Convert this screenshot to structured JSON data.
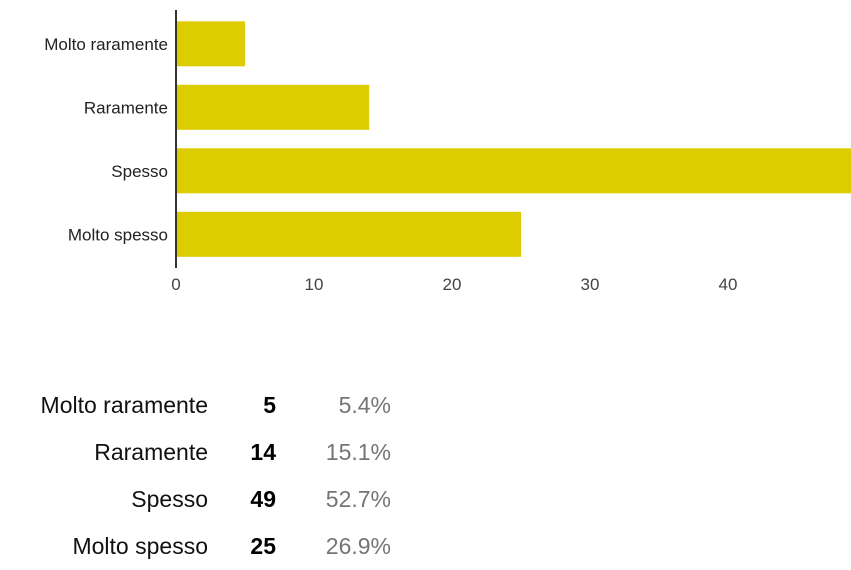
{
  "chart_data": {
    "type": "bar",
    "orientation": "horizontal",
    "categories": [
      "Molto raramente",
      "Raramente",
      "Spesso",
      "Molto spesso"
    ],
    "values": [
      5,
      14,
      49,
      25
    ],
    "xticks": [
      0,
      10,
      20,
      30,
      40
    ],
    "xlim": [
      0,
      49
    ],
    "grid": false,
    "bar_color": "#DDCC00",
    "axis_color": "#333333"
  },
  "summary": {
    "rows": [
      {
        "label": "Molto raramente",
        "count": "5",
        "percent": "5.4%"
      },
      {
        "label": "Raramente",
        "count": "14",
        "percent": "15.1%"
      },
      {
        "label": "Spesso",
        "count": "49",
        "percent": "52.7%"
      },
      {
        "label": "Molto spesso",
        "count": "25",
        "percent": "26.9%"
      }
    ]
  }
}
